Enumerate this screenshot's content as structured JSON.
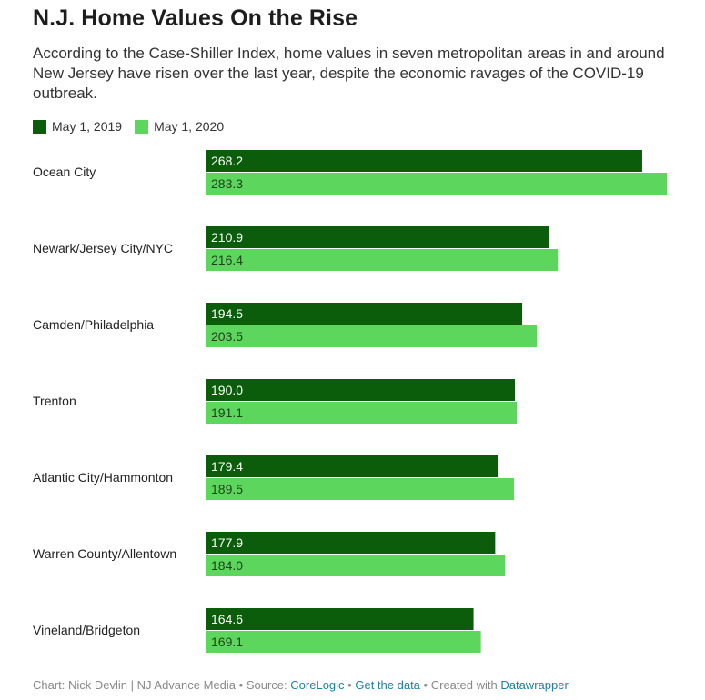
{
  "header": {
    "title": "N.J. Home Values On the Rise",
    "subtitle": "According to the Case-Shiller Index, home values in seven metropolitan areas in and around New Jersey have risen over the last year, despite the economic ravages of the COVID-19 outbreak."
  },
  "colors": {
    "series_2019": "#0b5d0b",
    "series_2020": "#5cd65c",
    "label_dark_bg": "#ffffff",
    "label_light_bg": "#1f3f1f"
  },
  "chart_data": {
    "type": "bar",
    "orientation": "horizontal",
    "categories": [
      "Ocean City",
      "Newark/Jersey City/NYC",
      "Camden/Philadelphia",
      "Trenton",
      "Atlantic City/Hammonton",
      "Warren County/Allentown",
      "Vineland/Bridgeton"
    ],
    "series": [
      {
        "name": "May 1, 2019",
        "values": [
          268.2,
          210.9,
          194.5,
          190.0,
          179.4,
          177.9,
          164.6
        ],
        "labels": [
          "268.2",
          "210.9",
          "194.5",
          "190.0",
          "179.4",
          "177.9",
          "164.6"
        ]
      },
      {
        "name": "May 1, 2020",
        "values": [
          283.3,
          216.4,
          203.5,
          191.1,
          189.5,
          184.0,
          169.1
        ],
        "labels": [
          "283.3",
          "216.4",
          "203.5",
          "191.1",
          "189.5",
          "184.0",
          "169.1"
        ]
      }
    ],
    "xlim": [
      0,
      283.3
    ],
    "legend_position": "top-left",
    "grid": false
  },
  "footer": {
    "credit": "Chart: Nick Devlin | NJ Advance Media",
    "source_label": "Source:",
    "source_link": "CoreLogic",
    "get_data": "Get the data",
    "created_with": "Created with",
    "datawrapper": "Datawrapper",
    "separator": "•"
  }
}
